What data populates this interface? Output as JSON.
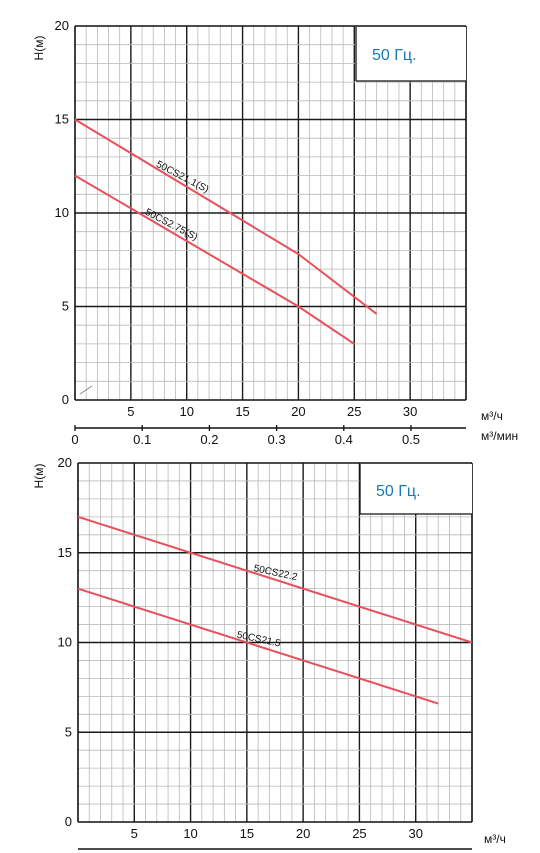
{
  "chart_data": [
    {
      "type": "line",
      "ylabel": "Н(м)",
      "x_units": "м³/ч",
      "x2_units": "м³/мин",
      "frequency": "50 Гц.",
      "xlim": [
        0,
        35
      ],
      "ylim": [
        0,
        20
      ],
      "x_ticks": [
        5,
        10,
        15,
        20,
        25,
        30
      ],
      "x_ticks_labels": [
        "5",
        "10",
        "15",
        "20",
        "25",
        "30"
      ],
      "x2_ticks": [
        0,
        0.1,
        0.2,
        0.3,
        0.4,
        0.5
      ],
      "x2_ticks_labels": [
        "0",
        "0.1",
        "0.2",
        "0.3",
        "0.4",
        "0.5"
      ],
      "y_ticks": [
        0,
        5,
        10,
        15,
        20
      ],
      "y_ticks_labels": [
        "0",
        "5",
        "10",
        "15",
        "20"
      ],
      "grid": true,
      "series": [
        {
          "name": "50CS21.1(S)",
          "color": "#e8505b",
          "x": [
            0,
            20,
            27
          ],
          "y": [
            15,
            7.8,
            4.6
          ]
        },
        {
          "name": "50CS2.75(S)",
          "color": "#e8505b",
          "x": [
            0,
            20,
            25
          ],
          "y": [
            12,
            5,
            3
          ]
        }
      ]
    },
    {
      "type": "line",
      "ylabel": "Н(м)",
      "x_units": "м³/ч",
      "frequency": "50 Гц.",
      "xlim": [
        0,
        35
      ],
      "ylim": [
        0,
        20
      ],
      "x_ticks": [
        5,
        10,
        15,
        20,
        25,
        30
      ],
      "x_ticks_labels": [
        "5",
        "10",
        "15",
        "20",
        "25",
        "30"
      ],
      "y_ticks": [
        0,
        5,
        10,
        15,
        20
      ],
      "y_ticks_labels": [
        "0",
        "5",
        "10",
        "15",
        "20"
      ],
      "grid": true,
      "series": [
        {
          "name": "50CS22.2",
          "color": "#e8505b",
          "x": [
            0,
            35
          ],
          "y": [
            17,
            10
          ]
        },
        {
          "name": "50CS21.5",
          "color": "#e8505b",
          "x": [
            0,
            32
          ],
          "y": [
            13,
            6.6
          ]
        }
      ]
    }
  ]
}
